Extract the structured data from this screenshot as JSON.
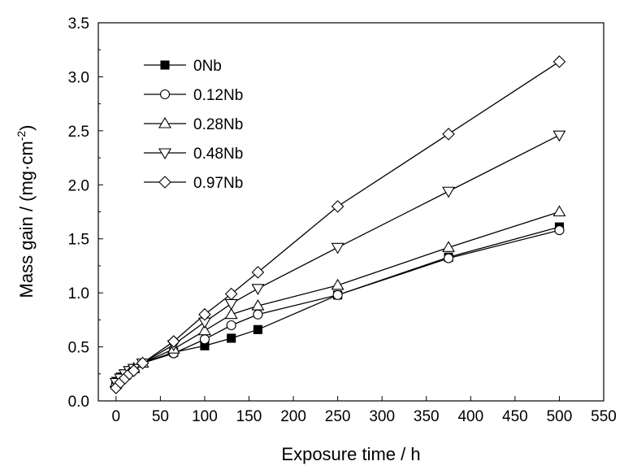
{
  "chart_data": {
    "type": "line",
    "xlabel": "Exposure time / h",
    "ylabel": "Mass gain / (mg·cm",
    "ylabel_sup": "-2",
    "ylabel_close": ")",
    "xlim": [
      -20,
      550
    ],
    "ylim": [
      0,
      3.5
    ],
    "xticks": [
      0,
      50,
      100,
      150,
      200,
      250,
      300,
      350,
      400,
      450,
      500,
      550
    ],
    "yticks": [
      0.0,
      0.5,
      1.0,
      1.5,
      2.0,
      2.5,
      3.0,
      3.5
    ],
    "xtick_labels": [
      "0",
      "50",
      "100",
      "150",
      "200",
      "250",
      "300",
      "350",
      "400",
      "450",
      "500",
      "550"
    ],
    "ytick_labels": [
      "0.0",
      "0.5",
      "1.0",
      "1.5",
      "2.0",
      "2.5",
      "3.0",
      "3.5"
    ],
    "grid": false,
    "legend_position": "top-left",
    "series": [
      {
        "name": "0Nb",
        "marker": "square-filled",
        "x": [
          0,
          5,
          10,
          15,
          20,
          30,
          65,
          100,
          130,
          160,
          250,
          375,
          500
        ],
        "y": [
          0.18,
          0.22,
          0.25,
          0.28,
          0.3,
          0.35,
          0.45,
          0.51,
          0.58,
          0.66,
          0.98,
          1.33,
          1.61
        ]
      },
      {
        "name": "0.12Nb",
        "marker": "circle-open",
        "x": [
          0,
          5,
          10,
          15,
          20,
          30,
          65,
          100,
          130,
          160,
          250,
          375,
          500
        ],
        "y": [
          0.16,
          0.2,
          0.23,
          0.26,
          0.29,
          0.35,
          0.44,
          0.57,
          0.7,
          0.8,
          0.98,
          1.32,
          1.58
        ]
      },
      {
        "name": "0.28Nb",
        "marker": "triangle-up-open",
        "x": [
          0,
          5,
          10,
          15,
          20,
          30,
          65,
          100,
          130,
          160,
          250,
          375,
          500
        ],
        "y": [
          0.17,
          0.21,
          0.24,
          0.28,
          0.3,
          0.35,
          0.48,
          0.65,
          0.8,
          0.88,
          1.07,
          1.42,
          1.75
        ]
      },
      {
        "name": "0.48Nb",
        "marker": "triangle-down-open",
        "x": [
          0,
          5,
          10,
          15,
          20,
          30,
          65,
          100,
          130,
          160,
          250,
          375,
          500
        ],
        "y": [
          0.17,
          0.21,
          0.25,
          0.28,
          0.3,
          0.35,
          0.52,
          0.73,
          0.9,
          1.04,
          1.42,
          1.94,
          2.46
        ]
      },
      {
        "name": "0.97Nb",
        "marker": "diamond-open",
        "x": [
          0,
          5,
          10,
          15,
          20,
          30,
          65,
          100,
          130,
          160,
          250,
          375,
          500
        ],
        "y": [
          0.12,
          0.17,
          0.21,
          0.25,
          0.28,
          0.35,
          0.55,
          0.8,
          0.99,
          1.19,
          1.8,
          2.47,
          3.14
        ]
      }
    ]
  }
}
